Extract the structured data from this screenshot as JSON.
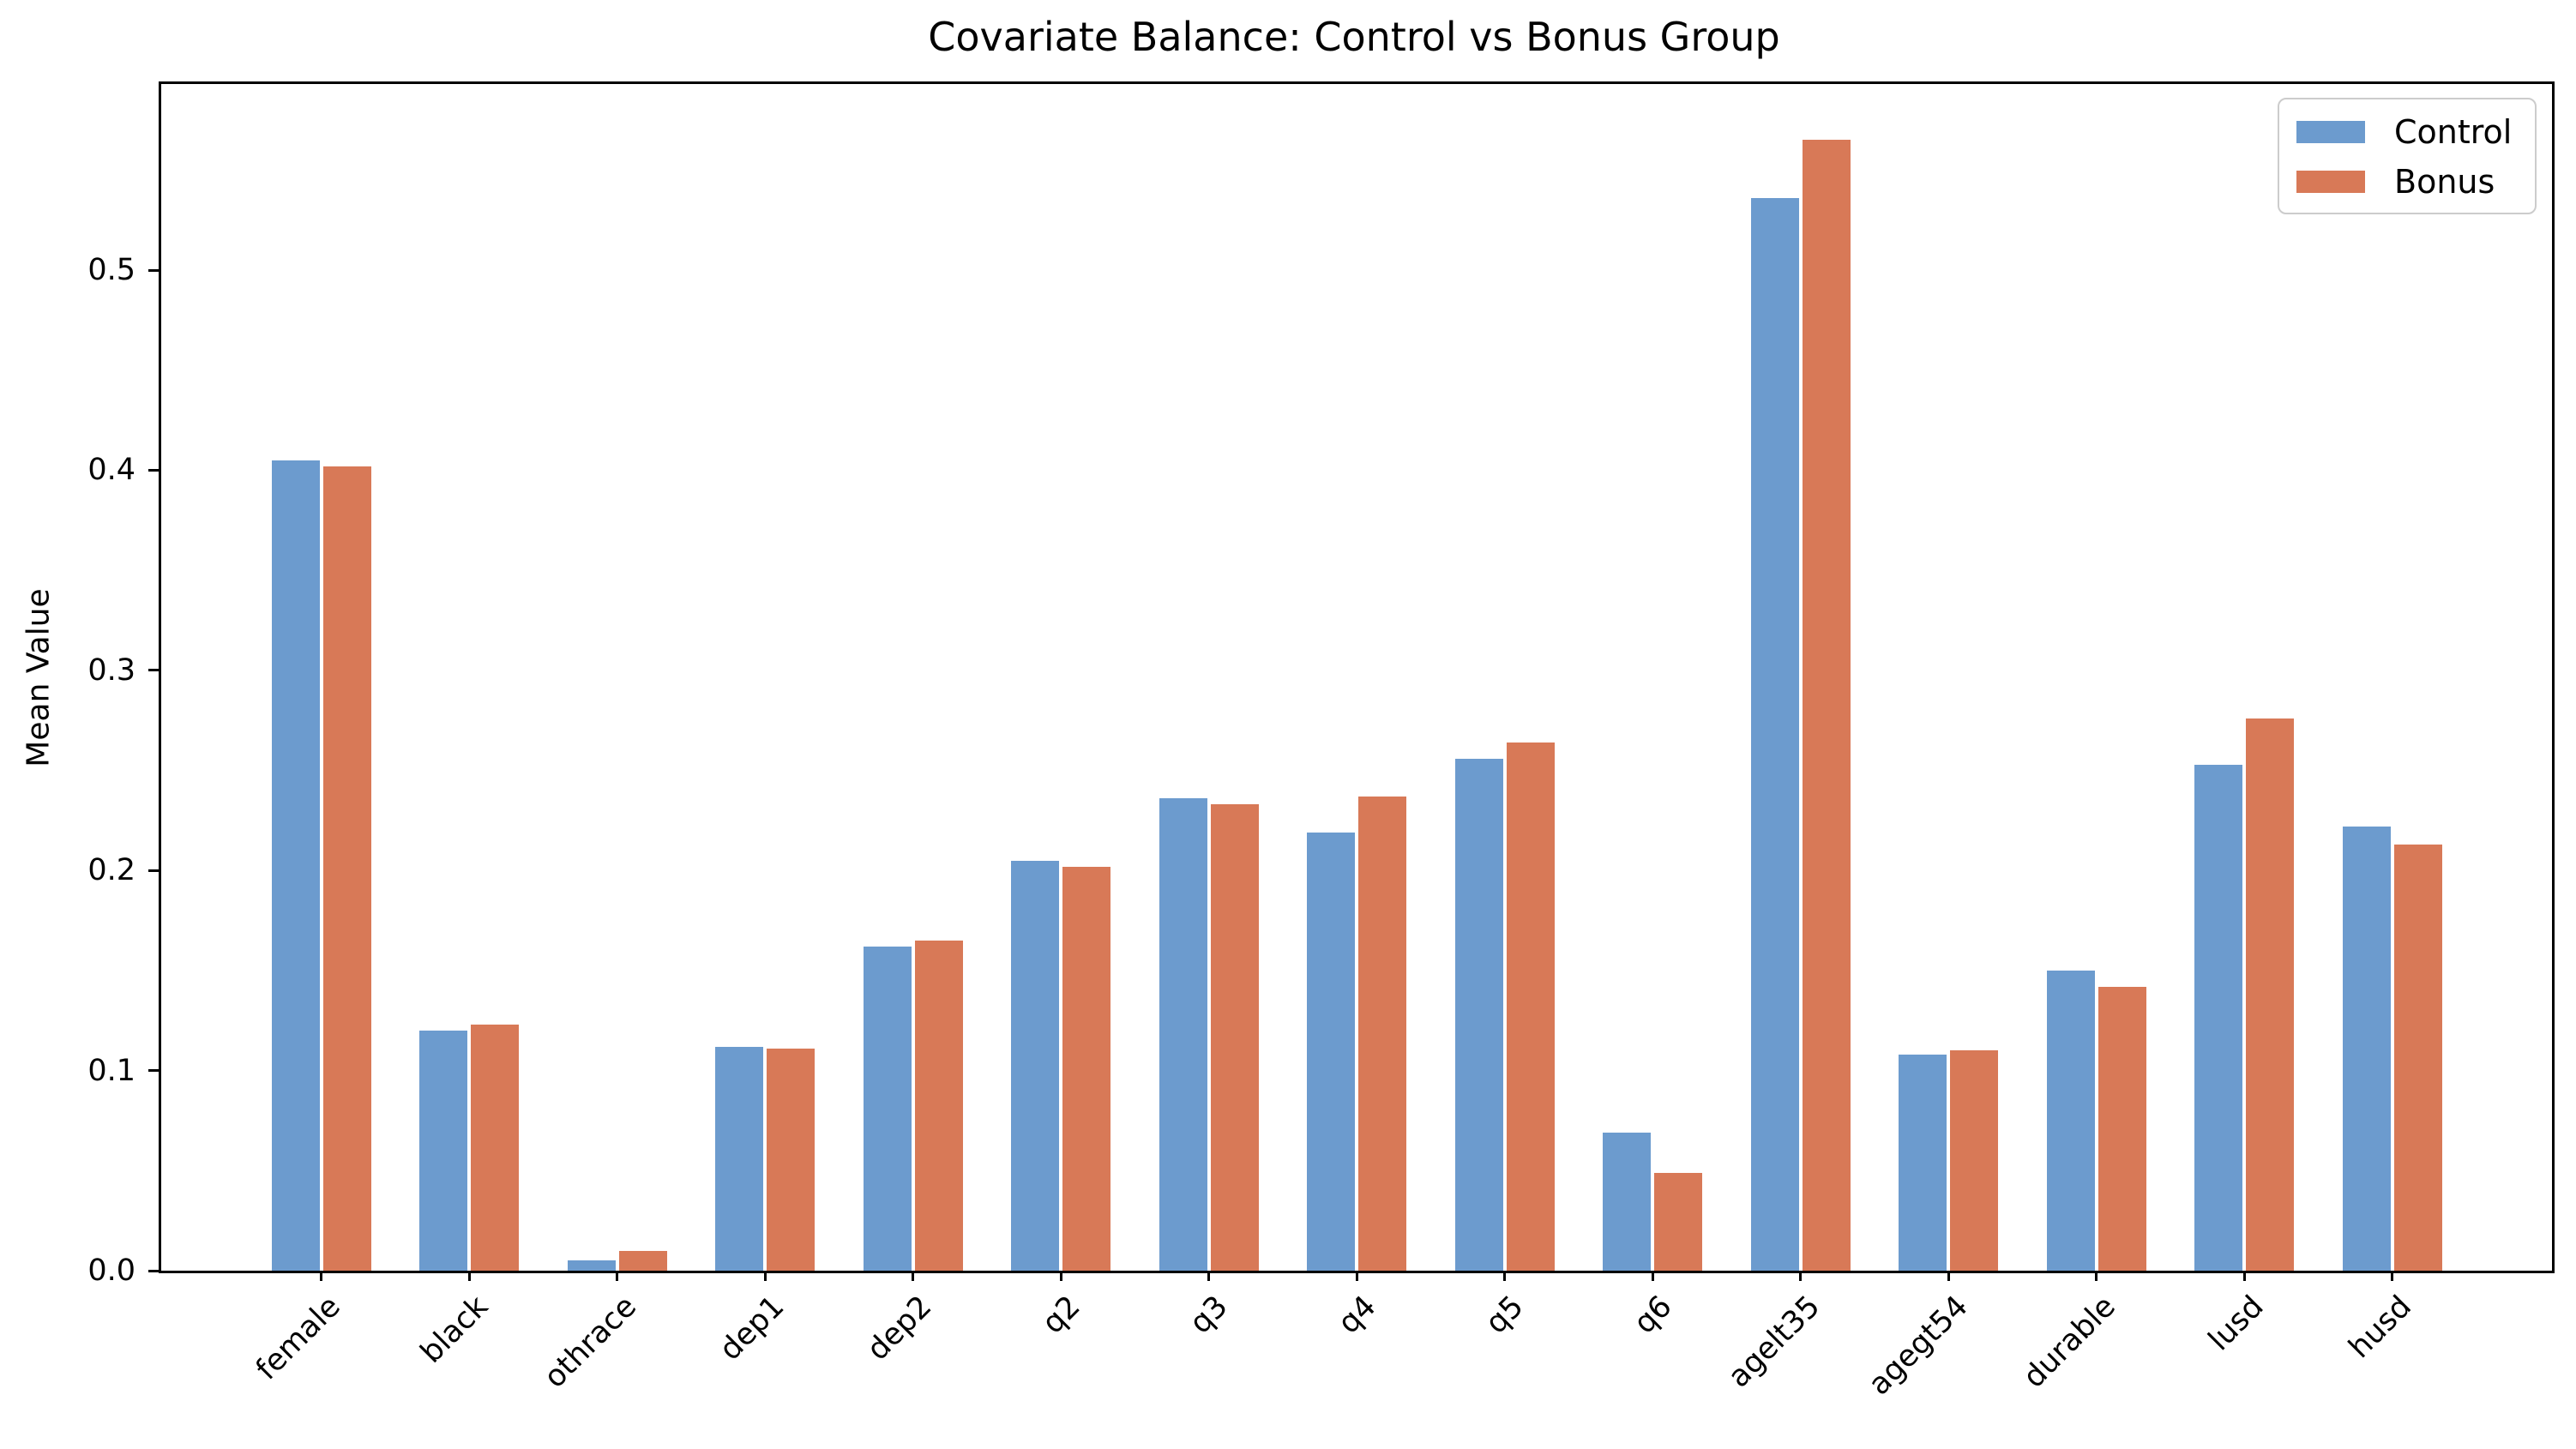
{
  "figure": {
    "title": "Covariate Balance: Control vs Bonus Group"
  },
  "chart_data": {
    "type": "bar",
    "title": "Covariate Balance: Control vs Bonus Group",
    "xlabel": "",
    "ylabel": "Mean Value",
    "categories": [
      "female",
      "black",
      "othrace",
      "dep1",
      "dep2",
      "q2",
      "q3",
      "q4",
      "q5",
      "q6",
      "agelt35",
      "agegt54",
      "durable",
      "lusd",
      "husd"
    ],
    "series": [
      {
        "name": "Control",
        "color": "#6C9BCE",
        "values": [
          0.405,
          0.12,
          0.005,
          0.112,
          0.162,
          0.205,
          0.236,
          0.219,
          0.256,
          0.069,
          0.536,
          0.108,
          0.15,
          0.253,
          0.222
        ]
      },
      {
        "name": "Bonus",
        "color": "#D87957",
        "values": [
          0.402,
          0.123,
          0.01,
          0.111,
          0.165,
          0.202,
          0.233,
          0.237,
          0.264,
          0.049,
          0.565,
          0.11,
          0.142,
          0.276,
          0.213
        ]
      }
    ],
    "yticks": [
      0.0,
      0.1,
      0.2,
      0.3,
      0.4,
      0.5
    ],
    "ylim": [
      0,
      0.593
    ],
    "grid": false,
    "legend_position": "upper right",
    "x_tick_rotation": 45
  }
}
